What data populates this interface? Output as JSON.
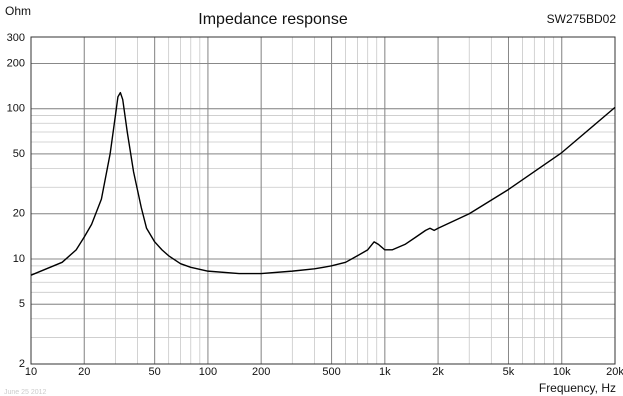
{
  "chart_data": {
    "type": "line",
    "title": "Impedance response",
    "subtitle": "SW275BD02",
    "y_label": "Ohm",
    "x_label": "Frequency, Hz",
    "annotation": "June 25 2012",
    "xscale": "log",
    "yscale": "log",
    "grid": true,
    "minor_grid": true,
    "xlim": [
      10,
      20000
    ],
    "ylim": [
      2,
      300
    ],
    "xticks": [
      10,
      20,
      50,
      100,
      200,
      500,
      {
        "value": 1000,
        "label": "1k"
      },
      {
        "value": 2000,
        "label": "2k"
      },
      {
        "value": 5000,
        "label": "5k"
      },
      {
        "value": 10000,
        "label": "10k"
      },
      {
        "value": 20000,
        "label": "20k"
      }
    ],
    "yticks": [
      2,
      5,
      10,
      20,
      50,
      100,
      200,
      300
    ],
    "x": [
      10,
      15,
      18,
      20,
      22,
      25,
      28,
      30,
      31,
      32,
      33,
      35,
      38,
      42,
      45,
      50,
      55,
      60,
      70,
      80,
      100,
      150,
      200,
      300,
      400,
      450,
      500,
      600,
      700,
      800,
      870,
      920,
      1000,
      1100,
      1300,
      1500,
      1700,
      1800,
      1900,
      2000,
      3000,
      5000,
      10000,
      20000
    ],
    "series": [
      {
        "name": "Impedance",
        "color": "#000000",
        "values": [
          7.8,
          9.5,
          11.5,
          14,
          17,
          25,
          50,
          90,
          120,
          128,
          115,
          70,
          38,
          22,
          16,
          13,
          11.5,
          10.5,
          9.3,
          8.8,
          8.3,
          8.0,
          8.0,
          8.3,
          8.6,
          8.8,
          9.0,
          9.5,
          10.5,
          11.5,
          13,
          12.5,
          11.5,
          11.5,
          12.5,
          14,
          15.5,
          16,
          15.5,
          16,
          20,
          29,
          51,
          102
        ]
      }
    ]
  }
}
